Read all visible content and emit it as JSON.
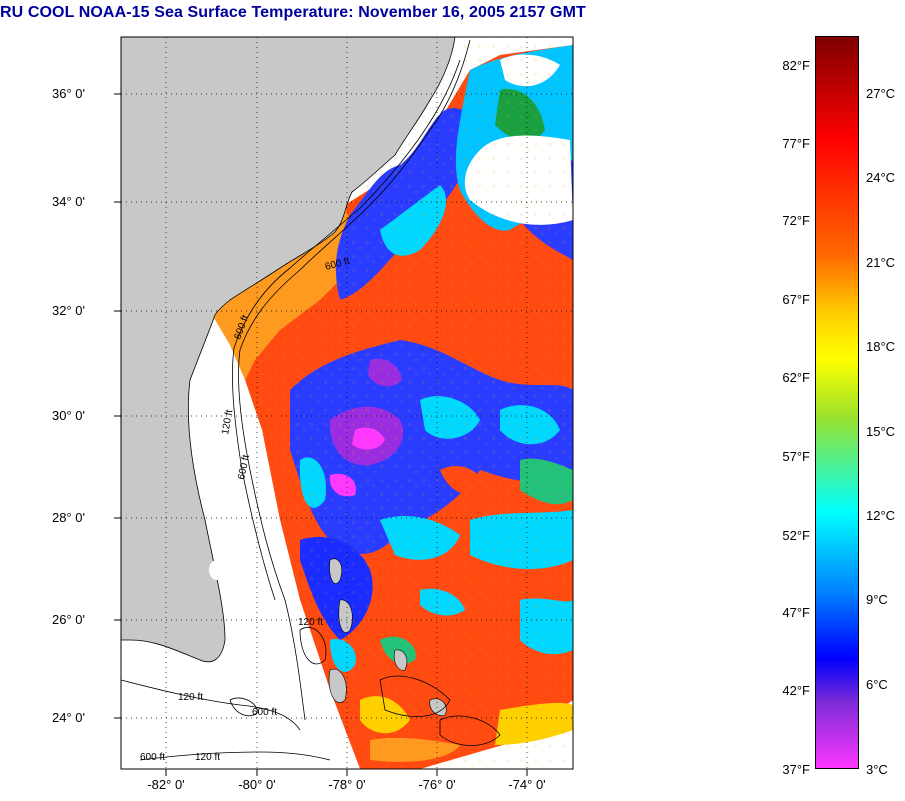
{
  "title": "RU COOL  NOAA-15  Sea Surface Temperature:  November 16, 2005 2157 GMT",
  "lat_labels": [
    "36° 0'",
    "34° 0'",
    "32° 0'",
    "30° 0'",
    "28° 0'",
    "26° 0'",
    "24° 0'"
  ],
  "lon_labels": [
    "-82° 0'",
    "-80° 0'",
    "-78° 0'",
    "-76° 0'",
    "-74° 0'"
  ],
  "map": {
    "land_color": "#c8c8c8",
    "nodata_color": "#ffffff",
    "grid": "dotted",
    "depth_contour_labels": [
      "600 ft",
      "120 ft",
      "600 ft",
      "120 ft",
      "600 ft",
      "120 ft",
      "600 ft",
      "600 ft",
      "120 ft"
    ]
  },
  "colorbar": {
    "fahrenheit": [
      "82°F",
      "77°F",
      "72°F",
      "67°F",
      "62°F",
      "57°F",
      "52°F",
      "47°F",
      "42°F",
      "37°F"
    ],
    "celsius": [
      "27°C",
      "24°C",
      "21°C",
      "18°C",
      "15°C",
      "12°C",
      "9°C",
      "6°C",
      "3°C"
    ],
    "colors": [
      "#7f0000",
      "#ff0000",
      "#ff6a00",
      "#ffff00",
      "#00ffff",
      "#0000ff",
      "#ff38ff"
    ]
  }
}
